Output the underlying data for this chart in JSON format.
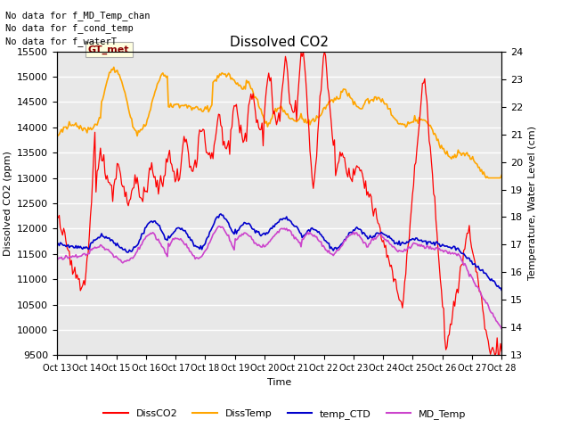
{
  "title": "Dissolved CO2",
  "xlabel": "Time",
  "ylabel_left": "Dissolved CO2 (ppm)",
  "ylabel_right": "Temperature, Water Level (cm)",
  "ylim_left": [
    9500,
    15500
  ],
  "ylim_right": [
    13.0,
    24.0
  ],
  "yticks_left": [
    9500,
    10000,
    10500,
    11000,
    11500,
    12000,
    12500,
    13000,
    13500,
    14000,
    14500,
    15000,
    15500
  ],
  "yticks_right": [
    13.0,
    14.0,
    15.0,
    16.0,
    17.0,
    18.0,
    19.0,
    20.0,
    21.0,
    22.0,
    23.0,
    24.0
  ],
  "xtick_labels": [
    "Oct 13",
    "Oct 14",
    "Oct 15",
    "Oct 16",
    "Oct 17",
    "Oct 18",
    "Oct 19",
    "Oct 20",
    "Oct 21",
    "Oct 22",
    "Oct 23",
    "Oct 24",
    "Oct 25",
    "Oct 26",
    "Oct 27",
    "Oct 28"
  ],
  "annotations": [
    "No data for f_MD_Temp_chan",
    "No data for f_cond_temp",
    "No data for f_waterT"
  ],
  "tooltip_text": "GT_met",
  "colors": {
    "DissCO2": "#ff0000",
    "DissTemp": "#ffa500",
    "temp_CTD": "#0000cc",
    "MD_Temp": "#cc44cc",
    "background": "#e8e8e8",
    "tooltip_bg": "#ffffe0",
    "tooltip_border": "#aaaaaa"
  },
  "legend_labels": [
    "DissCO2",
    "DissTemp",
    "temp_CTD",
    "MD_Temp"
  ],
  "n_points": 400
}
